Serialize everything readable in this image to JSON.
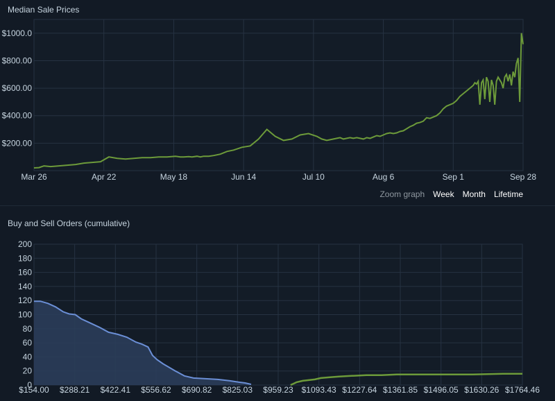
{
  "colors": {
    "background": "#121a25",
    "plot_background": "#131c27",
    "grid": "#263242",
    "sale_line": "#6d9b3a",
    "buy_line": "#6b8fd6",
    "buy_fill": "#2b3d5a",
    "sell_line": "#6d9b3a"
  },
  "zoom": {
    "label": "Zoom graph",
    "week": "Week",
    "month": "Month",
    "lifetime": "Lifetime"
  },
  "chart_data": [
    {
      "type": "line",
      "title": "Median Sale Prices",
      "x_axis": "date",
      "x_ticks": [
        "Mar 26",
        "Apr 22",
        "May 18",
        "Jun 14",
        "Jul 10",
        "Aug 6",
        "Sep 1",
        "Sep 28"
      ],
      "y_ticks": [
        "$200.00",
        "$400.00",
        "$600.00",
        "$800.00",
        "$1000.0"
      ],
      "ylim": [
        0,
        1100
      ],
      "grid": true,
      "series": [
        {
          "x": [
            0,
            3,
            6,
            10,
            15,
            20,
            25,
            30,
            35,
            40,
            45,
            50,
            55,
            60,
            65,
            70,
            75,
            80,
            85,
            88,
            90,
            93,
            95,
            98,
            100,
            102,
            105,
            108,
            112,
            116,
            120,
            125,
            130,
            135,
            140,
            145,
            150,
            155,
            160,
            165,
            170,
            173,
            176,
            178,
            180,
            182,
            184,
            186,
            188,
            190,
            192,
            194,
            196,
            198,
            200,
            202,
            204,
            206,
            208,
            210,
            212,
            214,
            216,
            218,
            220,
            222,
            224,
            226,
            228,
            230,
            232,
            234,
            236,
            238,
            240,
            242,
            244,
            246,
            248,
            250,
            252,
            254,
            256,
            258,
            260,
            262,
            264,
            265,
            266,
            267,
            268,
            269,
            270,
            271,
            272,
            273,
            274,
            275,
            276,
            277,
            278,
            279,
            280,
            281,
            282,
            283,
            284,
            285,
            286,
            287,
            288,
            289,
            290,
            291,
            292,
            293,
            294
          ],
          "values": [
            20,
            22,
            35,
            30,
            35,
            40,
            45,
            55,
            60,
            65,
            100,
            90,
            85,
            90,
            95,
            95,
            100,
            100,
            105,
            100,
            100,
            102,
            100,
            105,
            100,
            105,
            105,
            110,
            120,
            140,
            150,
            170,
            180,
            230,
            300,
            250,
            220,
            230,
            260,
            270,
            250,
            230,
            220,
            225,
            230,
            235,
            240,
            230,
            235,
            240,
            235,
            240,
            235,
            230,
            240,
            235,
            245,
            255,
            250,
            260,
            270,
            275,
            270,
            275,
            285,
            290,
            305,
            320,
            330,
            345,
            350,
            360,
            385,
            380,
            390,
            400,
            420,
            450,
            470,
            480,
            490,
            510,
            540,
            560,
            580,
            600,
            620,
            640,
            630,
            650,
            480,
            640,
            660,
            520,
            680,
            650,
            500,
            660,
            620,
            480,
            650,
            680,
            660,
            640,
            600,
            680,
            700,
            650,
            700,
            620,
            720,
            680,
            780,
            820,
            500,
            1000,
            920
          ]
        }
      ]
    },
    {
      "type": "area",
      "title": "Buy and Sell Orders (cumulative)",
      "x_ticks": [
        "$154.00",
        "$288.21",
        "$422.41",
        "$556.62",
        "$690.82",
        "$825.03",
        "$959.23",
        "$1093.43",
        "$1227.64",
        "$1361.85",
        "$1496.05",
        "$1630.26",
        "$1764.46"
      ],
      "y_ticks": [
        "0",
        "20",
        "40",
        "60",
        "80",
        "100",
        "120",
        "140",
        "160",
        "180",
        "200"
      ],
      "xlim": [
        154.0,
        1764.46
      ],
      "ylim": [
        0,
        200
      ],
      "grid": true,
      "series": [
        {
          "x": [
            154,
            175,
            200,
            225,
            250,
            270,
            290,
            310,
            340,
            370,
            400,
            430,
            460,
            490,
            510,
            530,
            545,
            560,
            580,
            600,
            620,
            650,
            680,
            720,
            760,
            800,
            830,
            850,
            870
          ],
          "values": [
            119,
            119,
            116,
            111,
            104,
            101,
            100,
            94,
            88,
            82,
            75,
            72,
            68,
            61,
            58,
            54,
            42,
            36,
            30,
            25,
            20,
            13,
            10,
            9,
            8,
            6,
            4,
            3,
            1
          ]
        },
        {
          "x": [
            1000,
            1010,
            1020,
            1040,
            1060,
            1080,
            1100,
            1130,
            1160,
            1200,
            1250,
            1300,
            1350,
            1400,
            1500,
            1600,
            1700,
            1764.46
          ],
          "values": [
            0,
            2,
            4,
            6,
            7,
            8,
            10,
            11,
            12,
            13,
            14,
            14,
            15,
            15,
            15,
            15,
            16,
            16
          ]
        }
      ]
    }
  ]
}
